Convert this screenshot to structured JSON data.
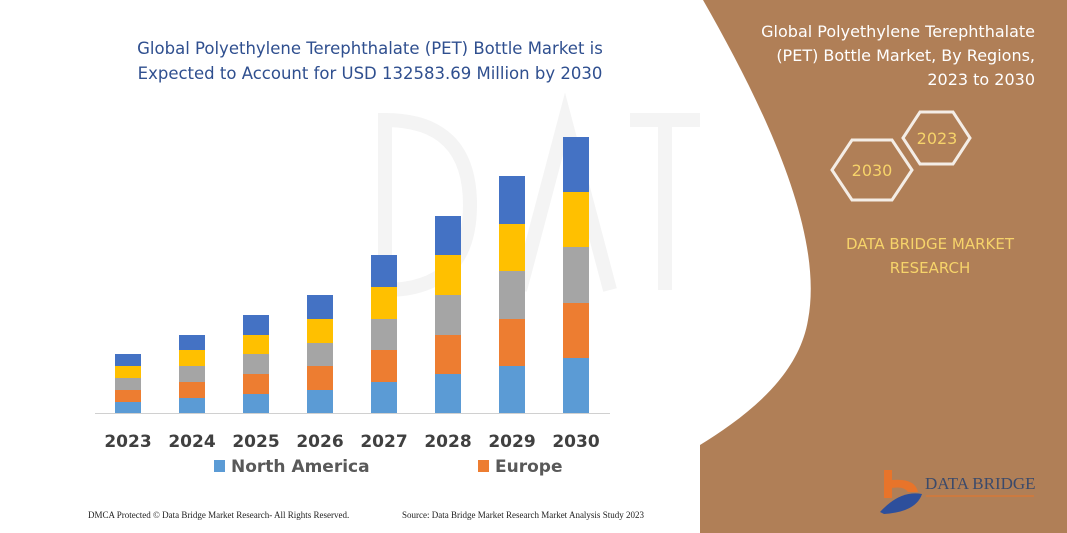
{
  "chart_data": {
    "type": "bar",
    "stacked": true,
    "title": "Global Polyethylene Terephthalate (PET) Bottle Market is Expected to Account for USD 132583.69 Million by 2030",
    "categories": [
      "2023",
      "2024",
      "2025",
      "2026",
      "2027",
      "2028",
      "2029",
      "2030"
    ],
    "series": [
      {
        "name": "North America",
        "color": "#5b9bd5",
        "values": [
          11,
          15,
          19,
          23,
          31,
          39,
          47,
          55
        ]
      },
      {
        "name": "Europe",
        "color": "#ed7d31",
        "values": [
          12,
          16,
          20,
          24,
          32,
          39,
          47,
          55
        ]
      },
      {
        "color": "#a5a5a5",
        "values": [
          12,
          16,
          20,
          23,
          31,
          40,
          48,
          56
        ]
      },
      {
        "color": "#ffc000",
        "values": [
          12,
          16,
          19,
          24,
          32,
          40,
          47,
          55
        ]
      },
      {
        "color": "#4472c4",
        "values": [
          12,
          15,
          20,
          24,
          32,
          39,
          48,
          55
        ]
      }
    ],
    "legend_position": "bottom",
    "grid": false,
    "y_axis_shown": false
  },
  "panel": {
    "title_lines": [
      "Global Polyethylene Terephthalate",
      "(PET) Bottle Market, By Regions,",
      "2023 to 2030"
    ],
    "hex_left": "2030",
    "hex_right": "2023",
    "brand_lines": [
      "DATA BRIDGE MARKET",
      "RESEARCH"
    ],
    "logo_text": "DATA BRIDGE",
    "color": "#b07f57"
  },
  "footer": {
    "left": "DMCA Protected © Data Bridge Market Research-  All Rights Reserved.",
    "right": "Source: Data Bridge Market Research  Market Analysis Study 2023"
  }
}
